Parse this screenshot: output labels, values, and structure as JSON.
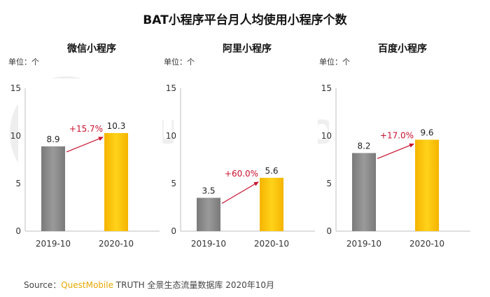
{
  "title": "BAT小程序平台月人均使用小程序个数",
  "watermark": "QUEST MOBILE",
  "source": {
    "prefix": "Source：",
    "brand": "QuestMobile",
    "rest": " TRUTH 全景生态流量数据库 2020年10月"
  },
  "colors": {
    "bar_2019": "#8a8a8a",
    "bar_2020": "#ffc20e",
    "arrow": "#c8102e",
    "panel_bg": "#ffffff",
    "panel_border": "#dcdcdc"
  },
  "chart_data": [
    {
      "type": "bar",
      "title": "微信小程序",
      "unit_label": "单位：个",
      "categories": [
        "2019-10",
        "2020-10"
      ],
      "values": [
        8.9,
        10.3
      ],
      "growth": "+15.7%",
      "ylim": [
        0,
        15
      ],
      "yticks": [
        0,
        5,
        10,
        15
      ]
    },
    {
      "type": "bar",
      "title": "阿里小程序",
      "unit_label": "单位：个",
      "categories": [
        "2019-10",
        "2020-10"
      ],
      "values": [
        3.5,
        5.6
      ],
      "growth": "+60.0%",
      "ylim": [
        0,
        15
      ],
      "yticks": [
        0,
        5,
        10,
        15
      ]
    },
    {
      "type": "bar",
      "title": "百度小程序",
      "unit_label": "单位：个",
      "categories": [
        "2019-10",
        "2020-10"
      ],
      "values": [
        8.2,
        9.6
      ],
      "growth": "+17.0%",
      "ylim": [
        0,
        15
      ],
      "yticks": [
        0,
        5,
        10,
        15
      ]
    }
  ]
}
